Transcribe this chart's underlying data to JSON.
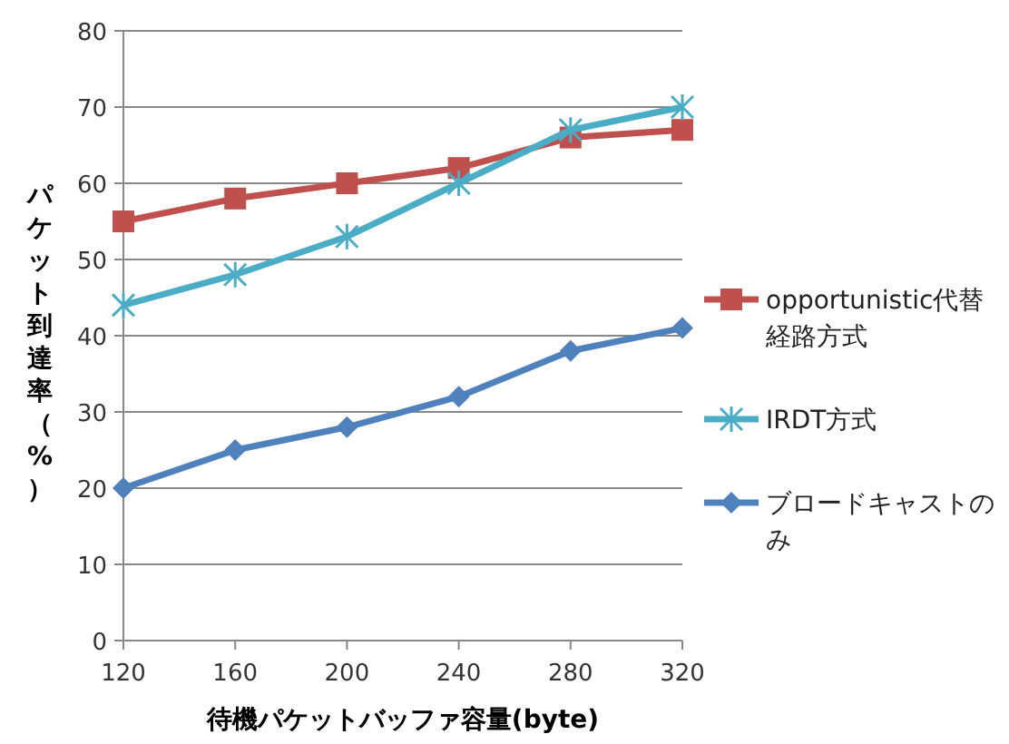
{
  "chart_data": {
    "type": "line",
    "xlabel": "待機パケットバッファ容量(byte)",
    "ylabel": "パケット到達率（%）",
    "x": [
      120,
      160,
      200,
      240,
      280,
      320
    ],
    "xlim": [
      120,
      320
    ],
    "xticks": [
      120,
      160,
      200,
      240,
      280,
      320
    ],
    "ylim": [
      0,
      80
    ],
    "yticks": [
      0,
      10,
      20,
      30,
      40,
      50,
      60,
      70,
      80
    ],
    "grid": "y",
    "legend": "right",
    "series": [
      {
        "name": "opportunistic代替経路方式",
        "color": "#c0504d",
        "marker": "square",
        "values": [
          55,
          58,
          60,
          62,
          66,
          67
        ]
      },
      {
        "name": "IRDT方式",
        "color": "#4bacc6",
        "marker": "cross",
        "values": [
          44,
          48,
          53,
          60,
          67,
          70
        ]
      },
      {
        "name": "ブロードキャストのみ",
        "color": "#4f81bd",
        "marker": "diamond",
        "values": [
          20,
          25,
          28,
          32,
          38,
          41
        ]
      }
    ]
  }
}
